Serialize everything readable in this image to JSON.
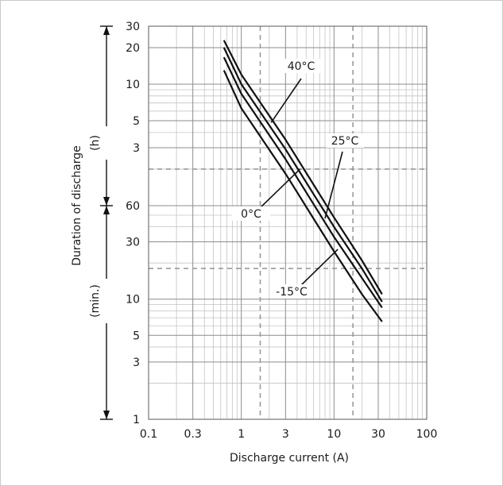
{
  "chart_data": {
    "type": "line",
    "title": "",
    "xlabel": "Discharge current (A)",
    "ylabel": "Duration of discharge",
    "x_scale": "log",
    "y_scale": "log",
    "xlim": [
      0.1,
      100
    ],
    "y_units_note": "Upper band in hours, lower band in minutes",
    "y_upper_unit_label": "(h)",
    "y_lower_unit_label": "(min.)",
    "y_upper_range_hours": [
      1,
      30
    ],
    "y_lower_range_minutes": [
      1,
      60
    ],
    "x_ticks": [
      {
        "value": 0.1,
        "label": "0.1"
      },
      {
        "value": 0.3,
        "label": "0.3"
      },
      {
        "value": 1,
        "label": "1"
      },
      {
        "value": 3,
        "label": "3"
      },
      {
        "value": 10,
        "label": "10"
      },
      {
        "value": 30,
        "label": "30"
      },
      {
        "value": 100,
        "label": "100"
      }
    ],
    "y_ticks_hours": [
      {
        "value": 30,
        "label": "30"
      },
      {
        "value": 20,
        "label": "20"
      },
      {
        "value": 10,
        "label": "10"
      },
      {
        "value": 5,
        "label": "5"
      },
      {
        "value": 3,
        "label": "3"
      }
    ],
    "y_ticks_minutes": [
      {
        "value": 60,
        "label": "60"
      },
      {
        "value": 30,
        "label": "30"
      },
      {
        "value": 10,
        "label": "10"
      },
      {
        "value": 5,
        "label": "5"
      },
      {
        "value": 3,
        "label": "3"
      },
      {
        "value": 1,
        "label": "1"
      }
    ],
    "dashed_reference_lines": {
      "x_current_A": [
        1.6,
        16
      ],
      "y_duration_minutes": [
        120,
        18
      ]
    },
    "series": [
      {
        "name": "40°C",
        "x": [
          0.65,
          1.0,
          3.0,
          10.0,
          20.0,
          33.0
        ],
        "y_minutes": [
          1380,
          720,
          210,
          48,
          21,
          11
        ]
      },
      {
        "name": "25°C",
        "x": [
          0.65,
          1.0,
          3.0,
          10.0,
          20.0,
          33.0
        ],
        "y_minutes": [
          1200,
          600,
          175,
          40,
          18,
          9.5
        ]
      },
      {
        "name": "0°C",
        "x": [
          0.65,
          1.0,
          3.0,
          10.0,
          20.0,
          33.0
        ],
        "y_minutes": [
          1000,
          500,
          145,
          33,
          15,
          8.5
        ]
      },
      {
        "name": "-15°C",
        "x": [
          0.65,
          1.0,
          3.0,
          10.0,
          20.0,
          33.0
        ],
        "y_minutes": [
          780,
          380,
          110,
          25,
          11,
          6.5
        ]
      }
    ],
    "curve_labels": [
      {
        "text": "40°C",
        "series": "40°C",
        "pointer_x": 2.1,
        "pointer_y_minutes": 290
      },
      {
        "text": "25°C",
        "series": "25°C",
        "pointer_x": 8.0,
        "pointer_y_minutes": 47
      },
      {
        "text": "0°C",
        "series": "0°C",
        "pointer_x": 4.3,
        "pointer_y_minutes": 120
      },
      {
        "text": "-15°C",
        "series": "-15°C",
        "pointer_x": 11.0,
        "pointer_y_minutes": 26
      }
    ]
  }
}
